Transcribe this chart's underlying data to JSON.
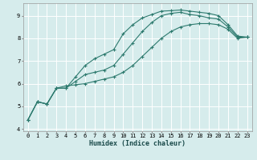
{
  "xlabel": "Humidex (Indice chaleur)",
  "ylabel": "",
  "background_color": "#d6ecec",
  "grid_color": "#ffffff",
  "line_color": "#2d7a6e",
  "xlim": [
    -0.5,
    23.5
  ],
  "ylim": [
    3.9,
    9.55
  ],
  "xticks": [
    0,
    1,
    2,
    3,
    4,
    5,
    6,
    7,
    8,
    9,
    10,
    11,
    12,
    13,
    14,
    15,
    16,
    17,
    18,
    19,
    20,
    21,
    22,
    23
  ],
  "yticks": [
    4,
    5,
    6,
    7,
    8,
    9
  ],
  "series": [
    [
      4.4,
      5.2,
      5.1,
      5.8,
      5.8,
      6.3,
      6.8,
      7.1,
      7.3,
      7.5,
      8.2,
      8.6,
      8.9,
      9.05,
      9.2,
      9.22,
      9.25,
      9.2,
      9.15,
      9.1,
      9.0,
      8.6,
      8.1,
      8.05
    ],
    [
      4.4,
      5.2,
      5.1,
      5.8,
      5.8,
      6.1,
      6.4,
      6.5,
      6.6,
      6.8,
      7.3,
      7.8,
      8.3,
      8.7,
      9.0,
      9.1,
      9.15,
      9.05,
      9.0,
      8.9,
      8.85,
      8.5,
      8.05,
      8.05
    ],
    [
      4.4,
      5.2,
      5.1,
      5.8,
      5.9,
      5.95,
      6.0,
      6.1,
      6.2,
      6.3,
      6.5,
      6.8,
      7.2,
      7.6,
      8.0,
      8.3,
      8.5,
      8.6,
      8.65,
      8.65,
      8.6,
      8.4,
      8.0,
      8.05
    ]
  ]
}
